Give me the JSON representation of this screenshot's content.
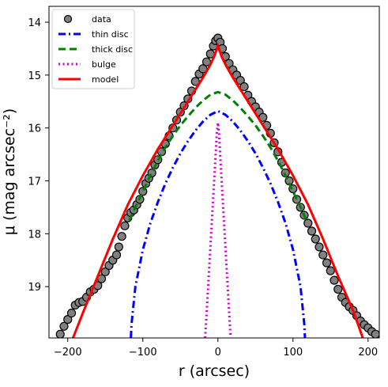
{
  "chart_data": {
    "type": "line",
    "xlabel": "r (arcsec)",
    "ylabel": "μ (mag arcsec⁻²)",
    "xlim": [
      -225,
      215
    ],
    "ylim": [
      19.97,
      13.7
    ],
    "y_inverted": true,
    "grid": false,
    "legend_placement": "top-left",
    "x_ticks": [
      -200,
      -100,
      0,
      100,
      200
    ],
    "x_tick_labels": [
      "−200",
      "−100",
      "0",
      "100",
      "200"
    ],
    "y_ticks": [
      14,
      15,
      16,
      17,
      18,
      19
    ],
    "y_tick_labels": [
      "14",
      "15",
      "16",
      "17",
      "18",
      "19"
    ],
    "legend": [
      {
        "key": "data",
        "label": "data"
      },
      {
        "key": "thin",
        "label": "thin disc"
      },
      {
        "key": "thick",
        "label": "thick disc"
      },
      {
        "key": "bulge",
        "label": "bulge"
      },
      {
        "key": "model",
        "label": "model"
      }
    ],
    "series": [
      {
        "key": "data",
        "name": "data",
        "style": "markers",
        "color": "#808080",
        "points": [
          [
            -210,
            19.9
          ],
          [
            -205,
            19.75
          ],
          [
            -200,
            19.62
          ],
          [
            -195,
            19.5
          ],
          [
            -190,
            19.35
          ],
          [
            -185,
            19.3
          ],
          [
            -180,
            19.28
          ],
          [
            -175,
            19.2
          ],
          [
            -170,
            19.1
          ],
          [
            -165,
            19.05
          ],
          [
            -160,
            18.98
          ],
          [
            -155,
            18.85
          ],
          [
            -150,
            18.72
          ],
          [
            -145,
            18.6
          ],
          [
            -140,
            18.5
          ],
          [
            -135,
            18.4
          ],
          [
            -132,
            18.25
          ],
          [
            -128,
            18.05
          ],
          [
            -124,
            17.85
          ],
          [
            -120,
            17.7
          ],
          [
            -116,
            17.6
          ],
          [
            -112,
            17.55
          ],
          [
            -108,
            17.45
          ],
          [
            -104,
            17.35
          ],
          [
            -100,
            17.2
          ],
          [
            -96,
            17.05
          ],
          [
            -92,
            16.95
          ],
          [
            -88,
            16.85
          ],
          [
            -84,
            16.7
          ],
          [
            -80,
            16.6
          ],
          [
            -75,
            16.45
          ],
          [
            -70,
            16.3
          ],
          [
            -65,
            16.15
          ],
          [
            -60,
            16.0
          ],
          [
            -55,
            15.85
          ],
          [
            -50,
            15.7
          ],
          [
            -45,
            15.58
          ],
          [
            -40,
            15.45
          ],
          [
            -35,
            15.3
          ],
          [
            -30,
            15.12
          ],
          [
            -25,
            14.98
          ],
          [
            -20,
            14.88
          ],
          [
            -15,
            14.75
          ],
          [
            -10,
            14.6
          ],
          [
            -6,
            14.45
          ],
          [
            -3,
            14.35
          ],
          [
            0,
            14.3
          ],
          [
            3,
            14.38
          ],
          [
            6,
            14.5
          ],
          [
            10,
            14.65
          ],
          [
            15,
            14.78
          ],
          [
            20,
            14.9
          ],
          [
            25,
            15.0
          ],
          [
            30,
            15.1
          ],
          [
            35,
            15.22
          ],
          [
            40,
            15.38
          ],
          [
            45,
            15.5
          ],
          [
            50,
            15.6
          ],
          [
            55,
            15.7
          ],
          [
            60,
            15.8
          ],
          [
            65,
            15.95
          ],
          [
            70,
            16.1
          ],
          [
            75,
            16.28
          ],
          [
            80,
            16.45
          ],
          [
            85,
            16.65
          ],
          [
            90,
            16.85
          ],
          [
            95,
            17.0
          ],
          [
            100,
            17.15
          ],
          [
            105,
            17.35
          ],
          [
            110,
            17.5
          ],
          [
            115,
            17.65
          ],
          [
            120,
            17.8
          ],
          [
            125,
            17.95
          ],
          [
            130,
            18.1
          ],
          [
            135,
            18.25
          ],
          [
            140,
            18.4
          ],
          [
            145,
            18.55
          ],
          [
            150,
            18.7
          ],
          [
            155,
            18.88
          ],
          [
            160,
            19.05
          ],
          [
            165,
            19.2
          ],
          [
            170,
            19.3
          ],
          [
            175,
            19.38
          ],
          [
            180,
            19.45
          ],
          [
            185,
            19.55
          ],
          [
            190,
            19.65
          ],
          [
            195,
            19.72
          ],
          [
            200,
            19.78
          ],
          [
            205,
            19.85
          ],
          [
            210,
            19.9
          ]
        ]
      },
      {
        "key": "thin",
        "name": "thin disc",
        "style": "dashdot",
        "color": "#0000ff",
        "points": [
          [
            -116,
            19.97
          ],
          [
            -115,
            19.7
          ],
          [
            -110,
            19.0
          ],
          [
            -100,
            18.3
          ],
          [
            -90,
            17.8
          ],
          [
            -80,
            17.4
          ],
          [
            -70,
            17.05
          ],
          [
            -60,
            16.75
          ],
          [
            -50,
            16.48
          ],
          [
            -40,
            16.25
          ],
          [
            -30,
            16.05
          ],
          [
            -20,
            15.88
          ],
          [
            -10,
            15.75
          ],
          [
            0,
            15.68
          ],
          [
            10,
            15.75
          ],
          [
            20,
            15.88
          ],
          [
            30,
            16.05
          ],
          [
            40,
            16.25
          ],
          [
            50,
            16.48
          ],
          [
            60,
            16.75
          ],
          [
            70,
            17.05
          ],
          [
            80,
            17.4
          ],
          [
            90,
            17.8
          ],
          [
            100,
            18.3
          ],
          [
            110,
            19.0
          ],
          [
            115,
            19.7
          ],
          [
            116,
            19.97
          ]
        ]
      },
      {
        "key": "thick",
        "name": "thick disc",
        "style": "dashed",
        "color": "#008000",
        "points": [
          [
            -118,
            17.75
          ],
          [
            -110,
            17.5
          ],
          [
            -100,
            17.2
          ],
          [
            -90,
            16.9
          ],
          [
            -80,
            16.62
          ],
          [
            -70,
            16.37
          ],
          [
            -60,
            16.15
          ],
          [
            -50,
            15.95
          ],
          [
            -40,
            15.78
          ],
          [
            -30,
            15.62
          ],
          [
            -20,
            15.48
          ],
          [
            -10,
            15.37
          ],
          [
            0,
            15.32
          ],
          [
            10,
            15.37
          ],
          [
            20,
            15.48
          ],
          [
            30,
            15.62
          ],
          [
            40,
            15.78
          ],
          [
            50,
            15.95
          ],
          [
            60,
            16.15
          ],
          [
            70,
            16.37
          ],
          [
            80,
            16.62
          ],
          [
            90,
            16.9
          ],
          [
            100,
            17.2
          ],
          [
            110,
            17.5
          ],
          [
            118,
            17.75
          ]
        ]
      },
      {
        "key": "bulge",
        "name": "bulge",
        "style": "dotted",
        "color": "#cc00cc",
        "points": [
          [
            -17,
            19.97
          ],
          [
            -15,
            19.5
          ],
          [
            -13,
            19.0
          ],
          [
            -11,
            18.5
          ],
          [
            -9,
            18.0
          ],
          [
            -7,
            17.5
          ],
          [
            -5,
            17.0
          ],
          [
            -3,
            16.5
          ],
          [
            -1.5,
            16.1
          ],
          [
            0,
            15.9
          ],
          [
            1.5,
            16.1
          ],
          [
            3,
            16.5
          ],
          [
            5,
            17.0
          ],
          [
            7,
            17.5
          ],
          [
            9,
            18.0
          ],
          [
            11,
            18.5
          ],
          [
            13,
            19.0
          ],
          [
            15,
            19.5
          ],
          [
            17,
            19.97
          ]
        ]
      },
      {
        "key": "model",
        "name": "model",
        "style": "solid",
        "color": "#ff0000",
        "points": [
          [
            -193,
            19.97
          ],
          [
            -180,
            19.5
          ],
          [
            -160,
            18.8
          ],
          [
            -140,
            18.1
          ],
          [
            -120,
            17.45
          ],
          [
            -100,
            16.9
          ],
          [
            -80,
            16.4
          ],
          [
            -60,
            15.95
          ],
          [
            -40,
            15.5
          ],
          [
            -20,
            15.05
          ],
          [
            -10,
            14.8
          ],
          [
            -5,
            14.65
          ],
          [
            0,
            14.45
          ],
          [
            5,
            14.65
          ],
          [
            10,
            14.8
          ],
          [
            20,
            15.05
          ],
          [
            40,
            15.5
          ],
          [
            60,
            15.95
          ],
          [
            80,
            16.4
          ],
          [
            100,
            16.9
          ],
          [
            120,
            17.45
          ],
          [
            140,
            18.1
          ],
          [
            160,
            18.8
          ],
          [
            180,
            19.45
          ],
          [
            193,
            19.97
          ]
        ]
      }
    ]
  }
}
